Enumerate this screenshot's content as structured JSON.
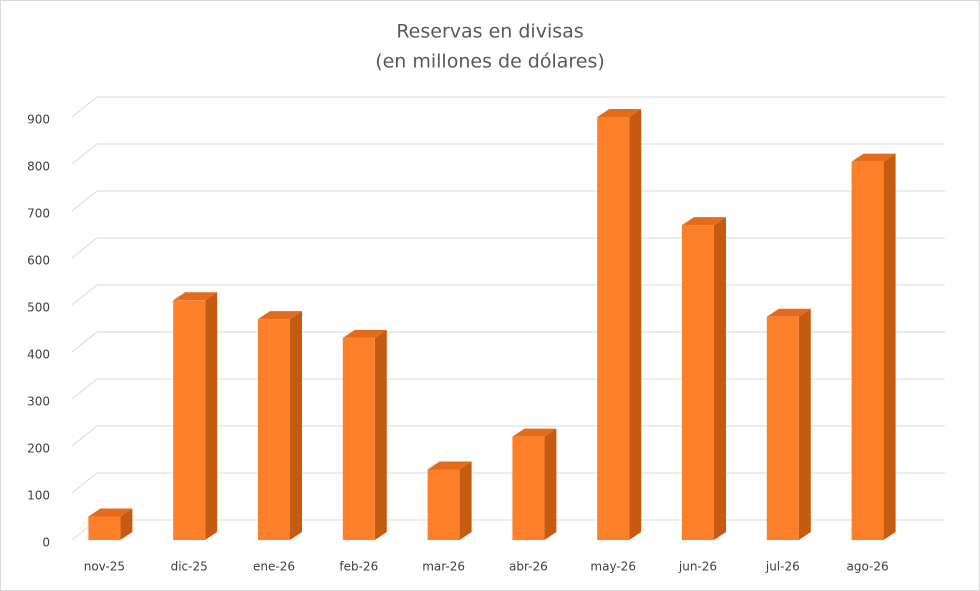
{
  "chart_data": {
    "type": "bar3d",
    "title": "Reservas en divisas",
    "subtitle": "(en millones de dólares)",
    "categories": [
      "nov-25",
      "dic-25",
      "ene-26",
      "feb-26",
      "mar-26",
      "abr-26",
      "may-26",
      "jun-26",
      "jul-26",
      "ago-26"
    ],
    "values": [
      50,
      510,
      470,
      430,
      150,
      220,
      900,
      670,
      475,
      805
    ],
    "color": "#fd7f2a",
    "side_color": "#c55a11",
    "top_color": "#e36c1c",
    "ylim": [
      0,
      900
    ],
    "yticks": [
      0,
      100,
      200,
      300,
      400,
      500,
      600,
      700,
      800,
      900
    ],
    "grid": true
  }
}
